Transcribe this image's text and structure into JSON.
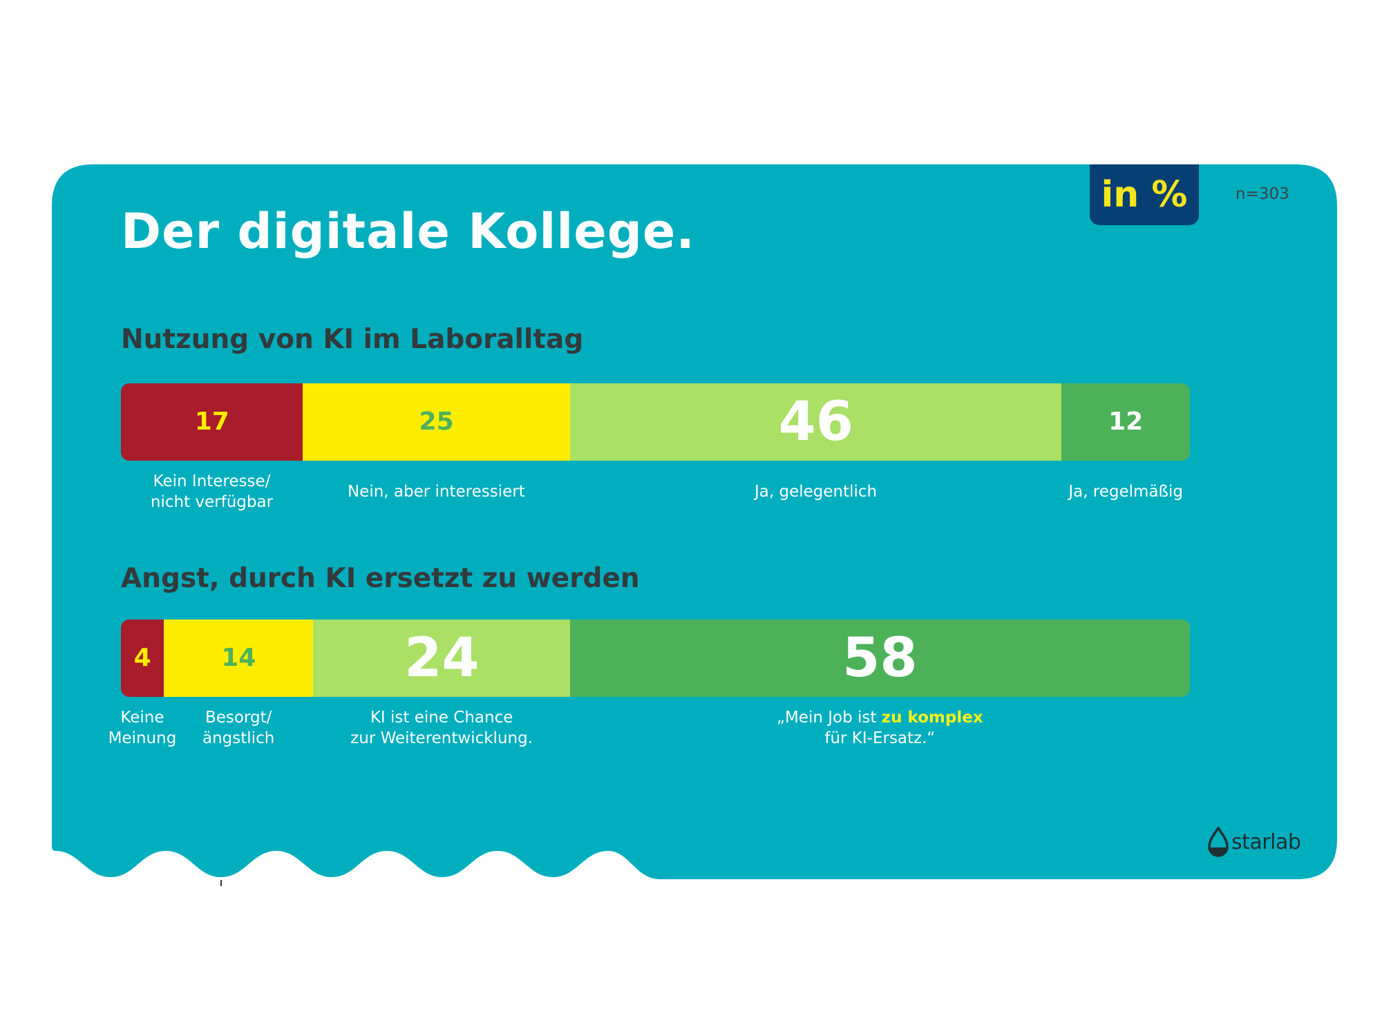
{
  "title": "Der digitale Kollege.",
  "unit_badge": "in %",
  "sample_size": "n=303",
  "colors": {
    "card": "#00aebe",
    "dark_red": "#a81c2c",
    "yellow": "#fded00",
    "light_green": "#a9e065",
    "green": "#4db15a",
    "badge_bg": "#053f73",
    "highlight": "#f6f21a"
  },
  "chart_data": [
    {
      "type": "bar",
      "stacked": true,
      "orientation": "horizontal",
      "title": "Nutzung von KI im Laboralltag",
      "categories": [
        "Kein Interesse/ nicht verfügbar",
        "Nein, aber interessiert",
        "Ja, gelegentlich",
        "Ja, regelmäßig"
      ],
      "values": [
        17,
        25,
        46,
        12
      ],
      "segments": [
        {
          "value": 17,
          "label_lines": [
            "Kein Interesse/",
            "nicht verfügbar"
          ],
          "color": "#a81c2c",
          "text_color": "#fded00"
        },
        {
          "value": 25,
          "label_lines": [
            "Nein, aber interessiert"
          ],
          "color": "#fded00",
          "text_color": "#4db15a"
        },
        {
          "value": 46,
          "label_lines": [
            "Ja, gelegentlich"
          ],
          "color": "#a9e065",
          "text_color": "#ffffff"
        },
        {
          "value": 12,
          "label_lines": [
            "Ja, regelmäßig"
          ],
          "color": "#4db15a",
          "text_color": "#ffffff"
        }
      ]
    },
    {
      "type": "bar",
      "stacked": true,
      "orientation": "horizontal",
      "title": "Angst, durch KI ersetzt zu werden",
      "categories": [
        "Keine Meinung",
        "Besorgt/ ängstlich",
        "KI ist eine Chance zur Weiterentwicklung.",
        "„Mein Job ist zu komplex für KI-Ersatz.“"
      ],
      "values": [
        4,
        14,
        24,
        58
      ],
      "segments": [
        {
          "value": 4,
          "label_lines": [
            "Keine",
            "Meinung"
          ],
          "color": "#a81c2c",
          "text_color": "#fded00"
        },
        {
          "value": 14,
          "label_lines": [
            "Besorgt/",
            "ängstlich"
          ],
          "color": "#fded00",
          "text_color": "#4db15a"
        },
        {
          "value": 24,
          "label_lines": [
            "KI ist eine Chance",
            "zur Weiterentwicklung."
          ],
          "color": "#a9e065",
          "text_color": "#ffffff"
        },
        {
          "value": 58,
          "label_lines": [],
          "label_parts": [
            [
              "„Mein Job ist ",
              "zu komplex",
              ""
            ],
            [
              "für KI-Ersatz.“",
              "",
              ""
            ]
          ],
          "color": "#4db15a",
          "text_color": "#ffffff"
        }
      ]
    }
  ],
  "logo": {
    "text": "starlab",
    "icon": "starlab-drop-icon"
  }
}
